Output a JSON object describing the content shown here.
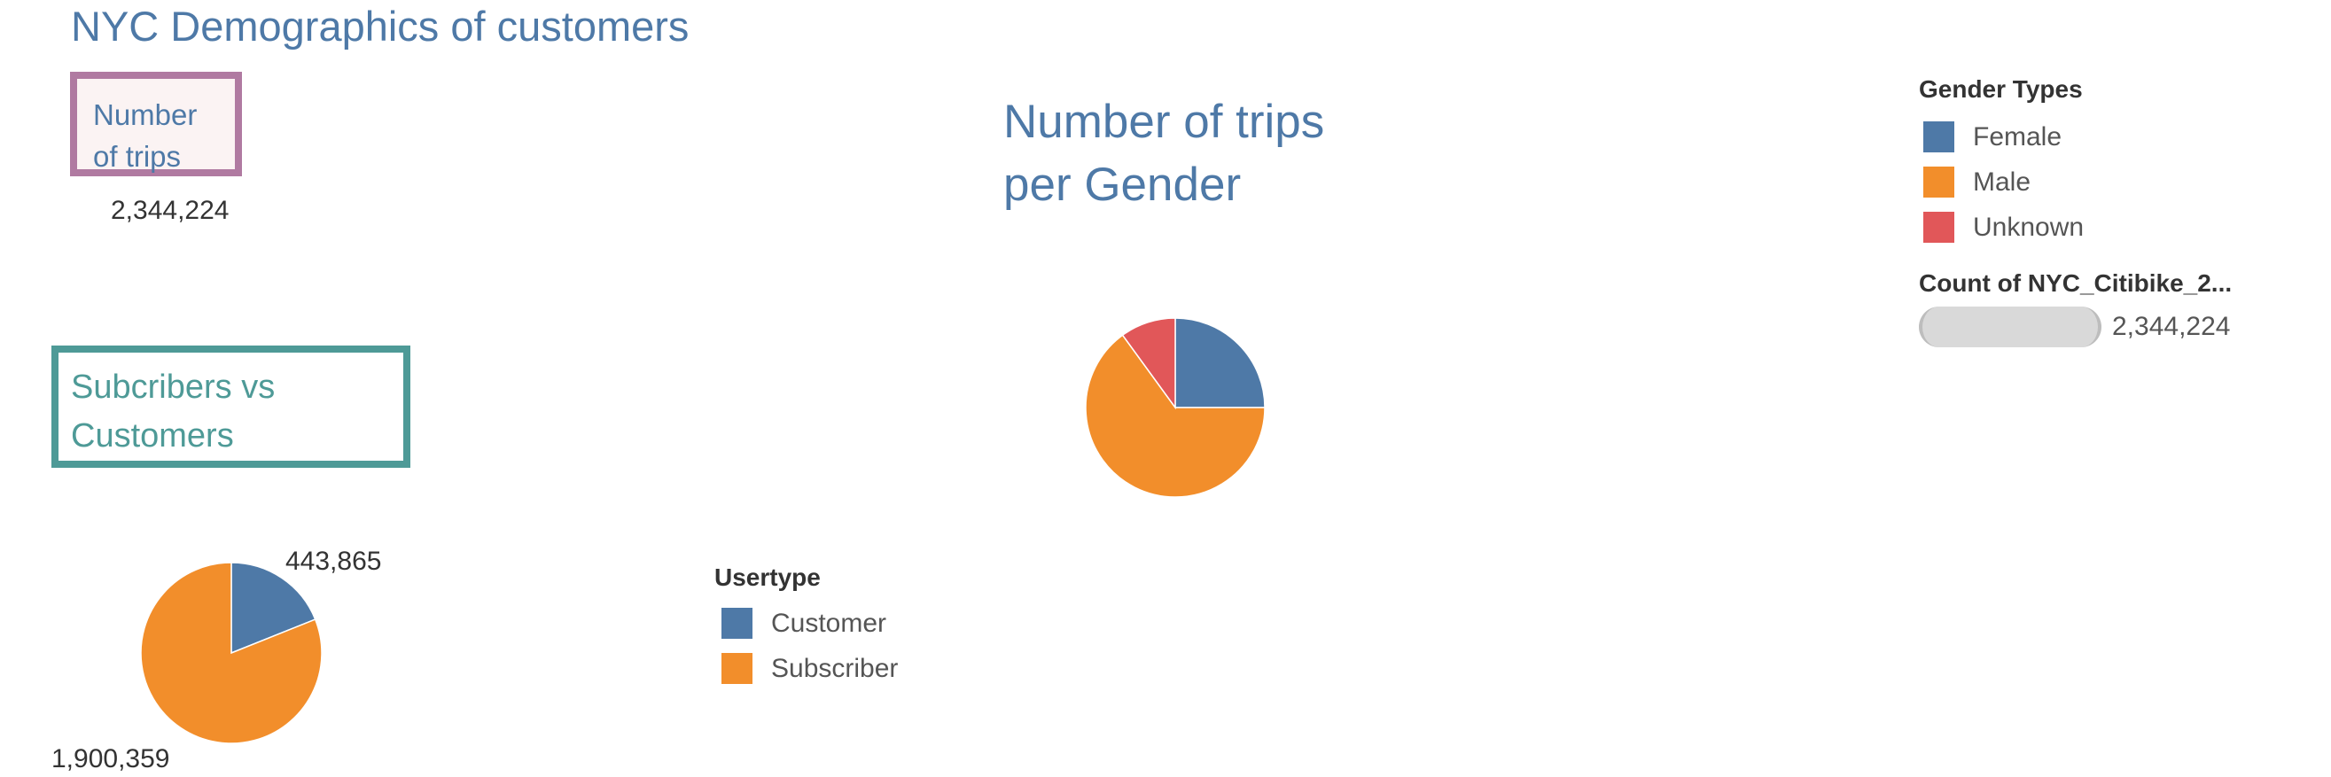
{
  "dashboard": {
    "title": "NYC Demographics of customers"
  },
  "kpi": {
    "label_line1": "Number",
    "label_line2": "of trips",
    "value": "2,344,224"
  },
  "usertype_section": {
    "title_line1": "Subcribers vs",
    "title_line2": "Customers"
  },
  "gender_section": {
    "title_line1": "Number of trips",
    "title_line2": "per Gender"
  },
  "gender_legend": {
    "title": "Gender Types",
    "items": [
      {
        "label": "Female",
        "color": "#4e79a7"
      },
      {
        "label": "Male",
        "color": "#f28e2b"
      },
      {
        "label": "Unknown",
        "color": "#e15759"
      }
    ]
  },
  "count_legend": {
    "title": "Count of NYC_Citibike_2...",
    "value": "2,344,224"
  },
  "usertype_legend": {
    "title": "Usertype",
    "items": [
      {
        "label": "Customer",
        "color": "#4e79a7"
      },
      {
        "label": "Subscriber",
        "color": "#f28e2b"
      }
    ]
  },
  "chart_data": [
    {
      "type": "pie",
      "categories": [
        "Female",
        "Male",
        "Unknown"
      ],
      "values": [
        25,
        65,
        10
      ],
      "colors": [
        "#4e79a7",
        "#f28e2b",
        "#e15759"
      ],
      "data_labels": []
    },
    {
      "type": "pie",
      "categories": [
        "Customer",
        "Subscriber"
      ],
      "values": [
        443865,
        1900359
      ],
      "colors": [
        "#4e79a7",
        "#f28e2b"
      ],
      "data_labels": [
        "443,865",
        "1,900,359"
      ]
    }
  ]
}
